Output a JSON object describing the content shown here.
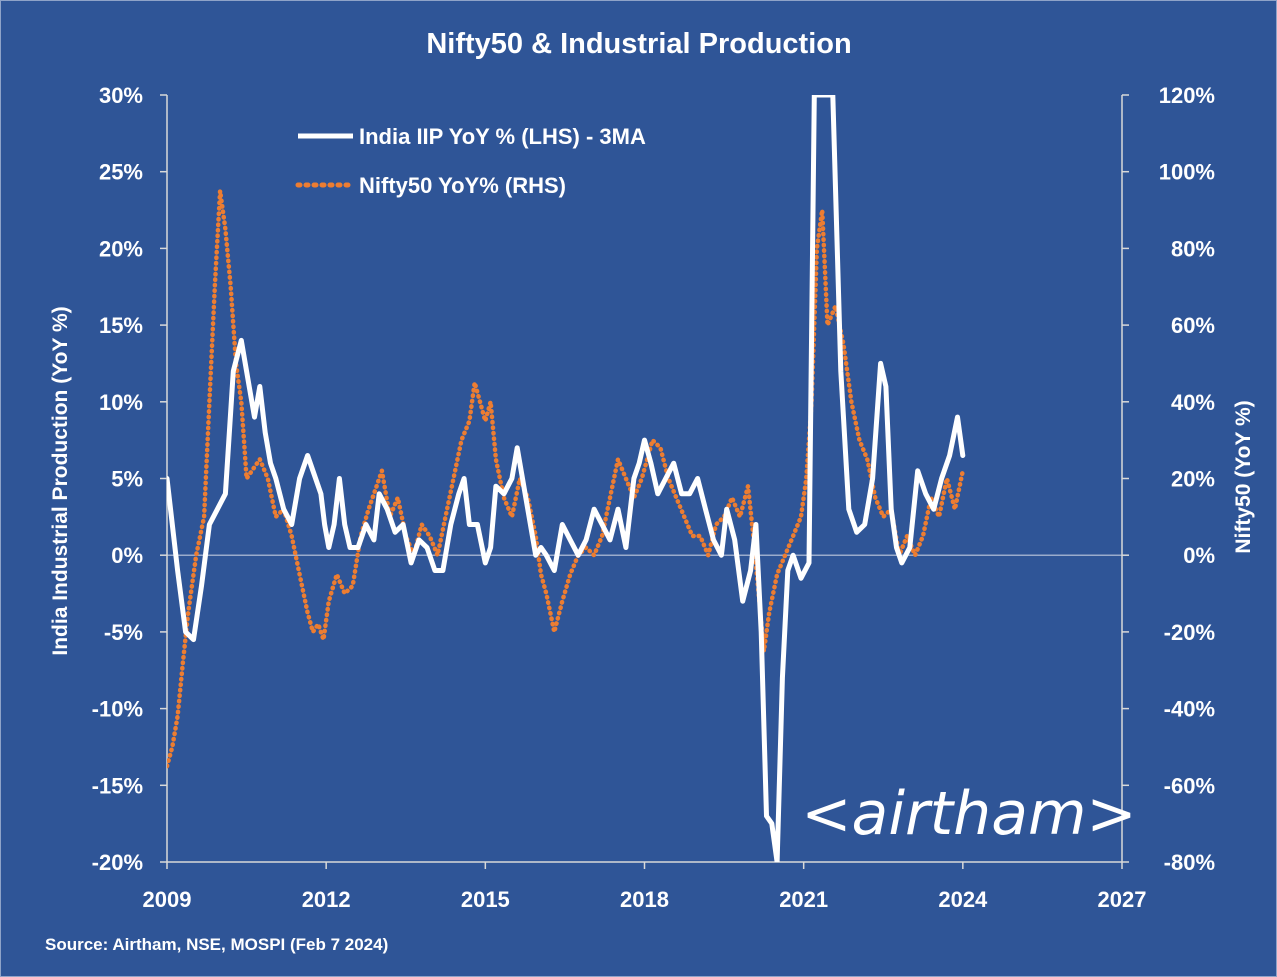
{
  "chart_data": {
    "type": "line",
    "title": "Nifty50 & Industrial Production",
    "ylabel": "India Industrial Production (YoY %)",
    "y2label": "Nifty50 (YoY %)",
    "xlim": [
      2009,
      2027
    ],
    "ylim": [
      -20,
      30
    ],
    "y2lim": [
      -80,
      120
    ],
    "x_ticks": [
      "2009",
      "2012",
      "2015",
      "2018",
      "2021",
      "2024",
      "2027"
    ],
    "y_ticks": [
      "30%",
      "25%",
      "20%",
      "15%",
      "10%",
      "5%",
      "0%",
      "-5%",
      "-10%",
      "-15%",
      "-20%"
    ],
    "y2_ticks": [
      "120%",
      "100%",
      "80%",
      "60%",
      "40%",
      "20%",
      "0%",
      "-20%",
      "-40%",
      "-60%",
      "-80%"
    ],
    "legend_position": "top-left",
    "source": "Source: Airtham, NSE, MOSPI (Feb 7 2024)",
    "watermark": "<airtham>",
    "colors": {
      "background": "#2F5597",
      "iip": "#FFFFFF",
      "nifty": "#ED7D31",
      "zero_line": "#BFC9DD"
    },
    "series": [
      {
        "name": "India IIP YoY % (LHS) - 3MA",
        "axis": "left",
        "style": "solid",
        "x": [
          2009.0,
          2009.2,
          2009.35,
          2009.5,
          2009.65,
          2009.8,
          2009.95,
          2010.1,
          2010.25,
          2010.4,
          2010.55,
          2010.65,
          2010.75,
          2010.85,
          2010.95,
          2011.05,
          2011.2,
          2011.35,
          2011.5,
          2011.65,
          2011.8,
          2011.9,
          2011.97,
          2012.05,
          2012.15,
          2012.25,
          2012.35,
          2012.45,
          2012.6,
          2012.75,
          2012.9,
          2013.0,
          2013.15,
          2013.3,
          2013.45,
          2013.6,
          2013.75,
          2013.9,
          2014.05,
          2014.2,
          2014.35,
          2014.5,
          2014.6,
          2014.7,
          2014.85,
          2015.0,
          2015.1,
          2015.2,
          2015.35,
          2015.5,
          2015.6,
          2015.7,
          2015.85,
          2015.95,
          2016.05,
          2016.15,
          2016.3,
          2016.45,
          2016.6,
          2016.75,
          2016.9,
          2017.05,
          2017.2,
          2017.35,
          2017.5,
          2017.65,
          2017.8,
          2017.9,
          2018.0,
          2018.12,
          2018.25,
          2018.4,
          2018.55,
          2018.7,
          2018.85,
          2019.0,
          2019.15,
          2019.3,
          2019.45,
          2019.55,
          2019.7,
          2019.85,
          2020.0,
          2020.1,
          2020.2,
          2020.3,
          2020.4,
          2020.5,
          2020.6,
          2020.7,
          2020.8,
          2020.95,
          2021.1,
          2021.2,
          2021.3,
          2021.4,
          2021.55,
          2021.7,
          2021.85,
          2022.0,
          2022.15,
          2022.3,
          2022.45,
          2022.55,
          2022.65,
          2022.75,
          2022.85,
          2023.0,
          2023.15,
          2023.3,
          2023.45,
          2023.6,
          2023.75,
          2023.9,
          2024.0
        ],
        "y": [
          5,
          -1,
          -5,
          -5.5,
          -2,
          2,
          3,
          4,
          12,
          14,
          11,
          9,
          11,
          8,
          6,
          5,
          3,
          2,
          5,
          6.5,
          5,
          4,
          2,
          0.5,
          2,
          5,
          2,
          0.5,
          0.5,
          2,
          1,
          4,
          3,
          1.5,
          2,
          -0.5,
          1,
          0.5,
          -1,
          -1,
          2,
          4,
          5,
          2,
          2,
          -0.5,
          0.5,
          4.5,
          4,
          5,
          7,
          5,
          2,
          0,
          0.5,
          0,
          -1,
          2,
          1,
          0,
          1,
          3,
          2,
          1,
          3,
          0.5,
          5,
          6,
          7.5,
          6,
          4,
          5,
          6,
          4,
          4,
          5,
          3,
          1,
          0,
          3,
          1,
          -3,
          -1,
          2,
          -5,
          -17,
          -17.5,
          -20,
          -8,
          -1,
          0,
          -1.5,
          -0.5,
          30,
          30,
          30,
          30,
          12,
          3,
          1.5,
          2,
          5,
          12.5,
          11,
          3,
          0.5,
          -0.5,
          0.5,
          5.5,
          4,
          3,
          5,
          6.5,
          9,
          6.5
        ]
      },
      {
        "name": "Nifty50 YoY% (RHS)",
        "axis": "right",
        "style": "dotted",
        "x": [
          2009.0,
          2009.1,
          2009.2,
          2009.3,
          2009.4,
          2009.55,
          2009.7,
          2009.8,
          2009.9,
          2010.0,
          2010.1,
          2010.2,
          2010.3,
          2010.4,
          2010.5,
          2010.6,
          2010.75,
          2010.9,
          2011.05,
          2011.2,
          2011.35,
          2011.5,
          2011.65,
          2011.75,
          2011.85,
          2011.95,
          2012.05,
          2012.2,
          2012.35,
          2012.5,
          2012.65,
          2012.8,
          2012.95,
          2013.05,
          2013.2,
          2013.35,
          2013.5,
          2013.65,
          2013.8,
          2013.95,
          2014.1,
          2014.25,
          2014.4,
          2014.55,
          2014.7,
          2014.8,
          2014.9,
          2015.0,
          2015.1,
          2015.2,
          2015.35,
          2015.5,
          2015.65,
          2015.8,
          2015.95,
          2016.05,
          2016.15,
          2016.3,
          2016.45,
          2016.6,
          2016.75,
          2016.9,
          2017.05,
          2017.2,
          2017.35,
          2017.5,
          2017.65,
          2017.8,
          2017.95,
          2018.05,
          2018.15,
          2018.3,
          2018.45,
          2018.6,
          2018.75,
          2018.9,
          2019.05,
          2019.2,
          2019.35,
          2019.5,
          2019.65,
          2019.8,
          2019.95,
          2020.05,
          2020.15,
          2020.25,
          2020.35,
          2020.5,
          2020.65,
          2020.8,
          2020.95,
          2021.05,
          2021.15,
          2021.25,
          2021.35,
          2021.45,
          2021.6,
          2021.75,
          2021.9,
          2022.05,
          2022.2,
          2022.35,
          2022.5,
          2022.65,
          2022.8,
          2022.95,
          2023.1,
          2023.25,
          2023.4,
          2023.55,
          2023.7,
          2023.85,
          2024.0
        ],
        "y": [
          -55,
          -50,
          -42,
          -28,
          -15,
          0,
          10,
          40,
          70,
          95,
          85,
          70,
          50,
          40,
          20,
          22,
          25,
          20,
          10,
          12,
          5,
          -5,
          -15,
          -20,
          -18,
          -22,
          -12,
          -5,
          -10,
          -8,
          5,
          12,
          18,
          22,
          10,
          15,
          5,
          0,
          8,
          5,
          0,
          10,
          20,
          30,
          35,
          45,
          40,
          35,
          40,
          25,
          15,
          10,
          20,
          15,
          5,
          -5,
          -10,
          -20,
          -12,
          -5,
          0,
          2,
          0,
          5,
          15,
          25,
          20,
          15,
          20,
          25,
          30,
          28,
          20,
          15,
          10,
          5,
          5,
          0,
          8,
          10,
          15,
          10,
          18,
          5,
          -10,
          -25,
          -15,
          -5,
          0,
          5,
          10,
          20,
          40,
          80,
          90,
          60,
          65,
          55,
          40,
          30,
          25,
          15,
          10,
          12,
          0,
          5,
          0,
          5,
          15,
          10,
          20,
          12,
          22
        ]
      }
    ]
  }
}
